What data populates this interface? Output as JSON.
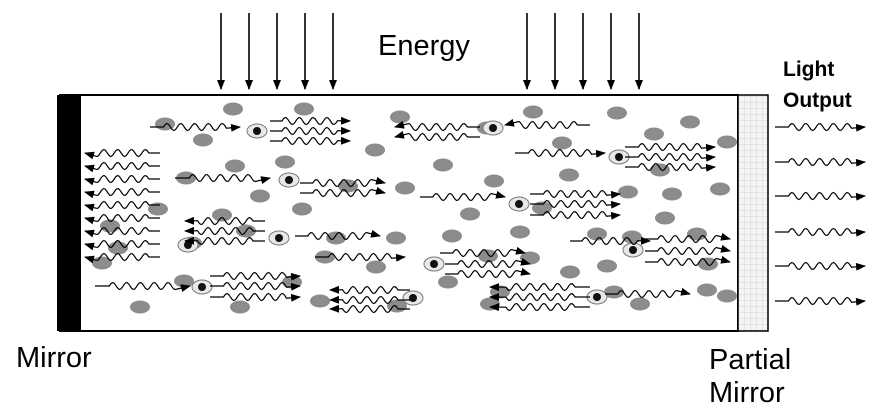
{
  "labels": {
    "energy": "Energy",
    "light_output_line1": "Light",
    "light_output_line2": "Output",
    "mirror": "Mirror",
    "partial_mirror_line1": "Partial",
    "partial_mirror_line2": "Mirror"
  },
  "colors": {
    "ink": "#000000",
    "atom": "#8c8c8c",
    "mirror": "#000000",
    "partial_mirror": "#f2f2f2"
  },
  "icons": {
    "energy_input": "down-arrow",
    "photon": "wavy-arrow",
    "atom": "gray-dot",
    "excited_atom": "dark-dot-with-halo"
  }
}
